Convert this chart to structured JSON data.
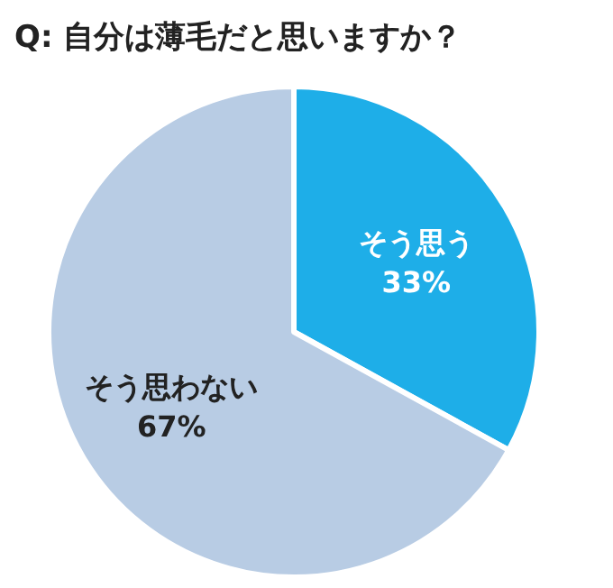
{
  "chart_data": {
    "type": "pie",
    "title": "Q: 自分は薄毛だと思いますか？",
    "categories": [
      "そう思う",
      "そう思わない"
    ],
    "values": [
      33,
      67
    ],
    "value_labels": [
      "33%",
      "67%"
    ],
    "colors": [
      "#1eaee8",
      "#b8cce4"
    ]
  }
}
